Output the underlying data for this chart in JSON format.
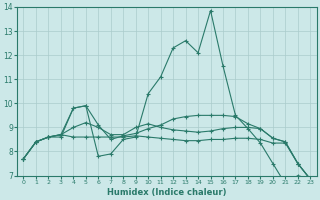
{
  "xlabel": "Humidex (Indice chaleur)",
  "bg_color": "#cce8e8",
  "grid_color": "#aacccc",
  "line_color": "#2a7a6a",
  "xlim": [
    -0.5,
    23.5
  ],
  "ylim": [
    7,
    14
  ],
  "xticks": [
    0,
    1,
    2,
    3,
    4,
    5,
    6,
    7,
    8,
    9,
    10,
    11,
    12,
    13,
    14,
    15,
    16,
    17,
    18,
    19,
    20,
    21,
    22,
    23
  ],
  "yticks": [
    7,
    8,
    9,
    10,
    11,
    12,
    13,
    14
  ],
  "lines": [
    {
      "x": [
        0,
        1,
        2,
        3,
        4,
        5,
        6,
        7,
        8,
        9,
        10,
        11,
        12,
        13,
        14,
        15,
        16,
        17,
        18,
        19,
        20,
        21,
        22,
        23
      ],
      "y": [
        7.7,
        8.4,
        8.6,
        8.6,
        9.8,
        9.9,
        7.8,
        7.9,
        8.5,
        8.6,
        10.4,
        11.1,
        12.3,
        12.6,
        12.1,
        13.85,
        11.55,
        9.5,
        8.95,
        8.35,
        7.5,
        6.65,
        7.0,
        6.85
      ]
    },
    {
      "x": [
        0,
        1,
        2,
        3,
        4,
        5,
        6,
        7,
        8,
        9,
        10,
        11,
        12,
        13,
        14,
        15,
        16,
        17,
        18,
        19,
        20,
        21,
        22,
        23
      ],
      "y": [
        7.7,
        8.4,
        8.6,
        8.7,
        8.6,
        8.6,
        8.6,
        8.6,
        8.6,
        8.65,
        8.6,
        8.55,
        8.5,
        8.45,
        8.45,
        8.5,
        8.5,
        8.55,
        8.55,
        8.5,
        8.35,
        8.35,
        7.5,
        6.85
      ]
    },
    {
      "x": [
        0,
        1,
        2,
        3,
        4,
        5,
        6,
        7,
        8,
        9,
        10,
        11,
        12,
        13,
        14,
        15,
        16,
        17,
        18,
        19,
        20,
        21,
        22,
        23
      ],
      "y": [
        7.7,
        8.4,
        8.6,
        8.7,
        9.0,
        9.2,
        9.0,
        8.7,
        8.7,
        9.0,
        9.15,
        9.0,
        8.9,
        8.85,
        8.8,
        8.85,
        8.95,
        9.0,
        9.0,
        8.95,
        8.55,
        8.4,
        7.5,
        6.85
      ]
    },
    {
      "x": [
        0,
        1,
        2,
        3,
        4,
        5,
        6,
        7,
        8,
        9,
        10,
        11,
        12,
        13,
        14,
        15,
        16,
        17,
        18,
        19,
        20,
        21,
        22,
        23
      ],
      "y": [
        7.7,
        8.4,
        8.6,
        8.7,
        9.8,
        9.9,
        9.1,
        8.5,
        8.65,
        8.75,
        8.95,
        9.1,
        9.35,
        9.45,
        9.5,
        9.5,
        9.5,
        9.45,
        9.15,
        8.95,
        8.55,
        8.4,
        7.5,
        6.85
      ]
    }
  ]
}
